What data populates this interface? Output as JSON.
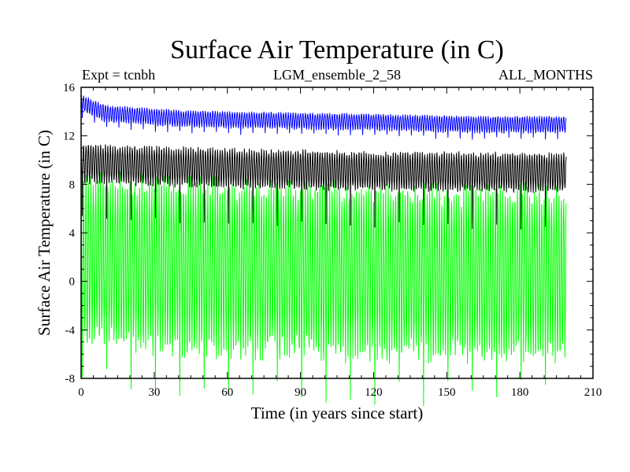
{
  "chart_data": {
    "type": "line",
    "title": "Surface Air Temperature (in C)",
    "subtitle_left": "Expt = tcnbh",
    "subtitle_center": "LGM_ensemble_2_58",
    "subtitle_right": "ALL_MONTHS",
    "xlabel": "Time (in years since start)",
    "ylabel": "Surface Air Temperature (in C)",
    "xlim": [
      0,
      210
    ],
    "ylim": [
      -8,
      16
    ],
    "xticks": [
      0,
      30,
      60,
      90,
      120,
      150,
      180,
      210
    ],
    "yticks": [
      -8,
      -4,
      0,
      4,
      8,
      12,
      16
    ],
    "grid": false,
    "x_end": 199,
    "series": [
      {
        "name": "blue",
        "color": "#0000ff",
        "mean": [
          [
            0,
            14.8
          ],
          [
            10,
            13.9
          ],
          [
            40,
            13.5
          ],
          [
            60,
            13.4
          ],
          [
            90,
            13.3
          ],
          [
            120,
            13.2
          ],
          [
            160,
            13.0
          ],
          [
            199,
            13.0
          ]
        ],
        "amp_low": 0.7,
        "amp_high": 0.55,
        "dip_every": 5,
        "dip_extra": 0.5
      },
      {
        "name": "black",
        "color": "#000000",
        "mean": [
          [
            0,
            9.8
          ],
          [
            20,
            9.6
          ],
          [
            60,
            9.4
          ],
          [
            100,
            9.2
          ],
          [
            150,
            9.1
          ],
          [
            199,
            9.0
          ]
        ],
        "amp_low": 1.5,
        "amp_high": 1.4,
        "dip_every": 10,
        "dip_extra": 3.0
      },
      {
        "name": "green",
        "color": "#00ff00",
        "mean": [
          [
            0,
            2.0
          ],
          [
            20,
            1.6
          ],
          [
            60,
            1.3
          ],
          [
            100,
            1.0
          ],
          [
            150,
            0.9
          ],
          [
            199,
            0.8
          ]
        ],
        "amp_low": 6.6,
        "amp_high": 6.3,
        "dip_every": 10,
        "dip_extra": 3.5
      }
    ]
  }
}
